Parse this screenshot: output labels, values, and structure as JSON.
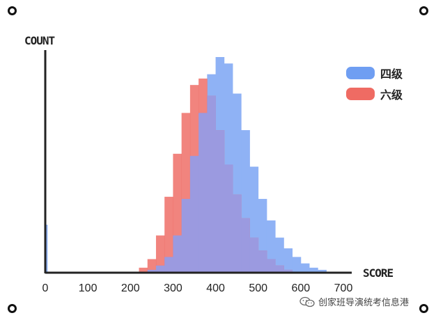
{
  "chart_data": {
    "type": "bar",
    "title": "",
    "xlabel": "SCORE",
    "ylabel": "COUNT",
    "xlim": [
      0,
      700
    ],
    "xticks": [
      0,
      100,
      200,
      300,
      400,
      500,
      600,
      700
    ],
    "grid": false,
    "legend": "top-right",
    "series": [
      {
        "name": "四级",
        "color": "#6f9ef2",
        "x": [
          0,
          220,
          240,
          260,
          280,
          300,
          320,
          340,
          360,
          380,
          400,
          420,
          440,
          460,
          480,
          500,
          520,
          540,
          560,
          580,
          600,
          620,
          640,
          660
        ],
        "values": [
          0.22,
          0.0,
          0.01,
          0.03,
          0.07,
          0.17,
          0.34,
          0.54,
          0.74,
          0.92,
          1.0,
          0.97,
          0.83,
          0.66,
          0.49,
          0.34,
          0.24,
          0.16,
          0.11,
          0.07,
          0.04,
          0.02,
          0.01,
          0.0
        ]
      },
      {
        "name": "六级",
        "color": "#ef6b63",
        "x": [
          220,
          240,
          260,
          280,
          300,
          320,
          340,
          360,
          380,
          400,
          420,
          440,
          460,
          480,
          500,
          520,
          540,
          560,
          580,
          600,
          620
        ],
        "values": [
          0.02,
          0.06,
          0.17,
          0.35,
          0.55,
          0.74,
          0.87,
          0.9,
          0.82,
          0.66,
          0.5,
          0.36,
          0.25,
          0.16,
          0.1,
          0.06,
          0.03,
          0.01,
          0.0,
          0.0,
          0.0
        ]
      }
    ]
  },
  "watermark": {
    "icon": "wechat-icon",
    "text": "创家班导演统考信息港"
  }
}
